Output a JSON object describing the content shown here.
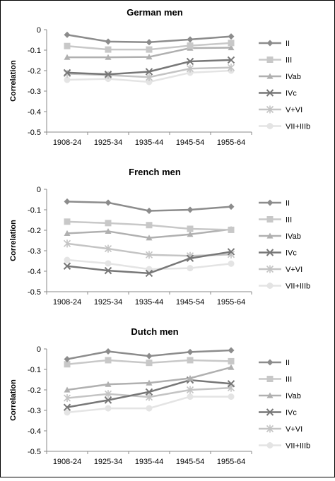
{
  "figure_outline": "#000000",
  "chart_data": [
    {
      "type": "line",
      "title": "German men",
      "ylabel": "Correlation",
      "xlabel": "",
      "ylim": [
        -0.5,
        0
      ],
      "yticks": [
        "0",
        "-0.1",
        "-0.2",
        "-0.3",
        "-0.4",
        "-0.5"
      ],
      "categories": [
        "1908-24",
        "1925-34",
        "1935-44",
        "1945-54",
        "1955-64"
      ],
      "grid": false,
      "legend": "right",
      "series": [
        {
          "name": "II",
          "marker": "diamond",
          "color": "#8c8c8c",
          "values": [
            -0.025,
            -0.058,
            -0.061,
            -0.048,
            -0.033
          ]
        },
        {
          "name": "III",
          "marker": "square",
          "color": "#c8c8c8",
          "values": [
            -0.08,
            -0.097,
            -0.097,
            -0.078,
            -0.065
          ]
        },
        {
          "name": "IVab",
          "marker": "triangle",
          "color": "#b0b0b0",
          "values": [
            -0.135,
            -0.135,
            -0.133,
            -0.09,
            -0.088
          ]
        },
        {
          "name": "IVc",
          "marker": "x",
          "color": "#777777",
          "values": [
            -0.21,
            -0.218,
            -0.205,
            -0.155,
            -0.148
          ]
        },
        {
          "name": "V+VI",
          "marker": "star",
          "color": "#c4c4c4",
          "values": [
            -0.215,
            -0.222,
            -0.232,
            -0.19,
            -0.185
          ]
        },
        {
          "name": "VII+IIIb",
          "marker": "circle",
          "color": "#e4e4e4",
          "values": [
            -0.245,
            -0.24,
            -0.255,
            -0.21,
            -0.2
          ]
        }
      ]
    },
    {
      "type": "line",
      "title": "French men",
      "ylabel": "Correlation",
      "xlabel": "",
      "ylim": [
        -0.5,
        0
      ],
      "yticks": [
        "0",
        "-0.1",
        "-0.2",
        "-0.3",
        "-0.4",
        "-0.5"
      ],
      "categories": [
        "1908-24",
        "1925-34",
        "1935-44",
        "1945-54",
        "1955-64"
      ],
      "grid": false,
      "legend": "right",
      "series": [
        {
          "name": "II",
          "marker": "diamond",
          "color": "#8c8c8c",
          "values": [
            -0.06,
            -0.065,
            -0.105,
            -0.1,
            -0.085
          ]
        },
        {
          "name": "III",
          "marker": "square",
          "color": "#c8c8c8",
          "values": [
            -0.158,
            -0.165,
            -0.175,
            -0.193,
            -0.198
          ]
        },
        {
          "name": "IVab",
          "marker": "triangle",
          "color": "#b0b0b0",
          "values": [
            -0.215,
            -0.205,
            -0.237,
            -0.22,
            -0.195
          ]
        },
        {
          "name": "IVc",
          "marker": "x",
          "color": "#777777",
          "values": [
            -0.375,
            -0.397,
            -0.41,
            -0.337,
            -0.305
          ]
        },
        {
          "name": "V+VI",
          "marker": "star",
          "color": "#c4c4c4",
          "values": [
            -0.265,
            -0.29,
            -0.32,
            -0.325,
            -0.318
          ]
        },
        {
          "name": "VII+IIIb",
          "marker": "circle",
          "color": "#e4e4e4",
          "values": [
            -0.345,
            -0.362,
            -0.39,
            -0.385,
            -0.363
          ]
        }
      ]
    },
    {
      "type": "line",
      "title": "Dutch men",
      "ylabel": "Correlation",
      "xlabel": "",
      "ylim": [
        -0.5,
        0
      ],
      "yticks": [
        "0",
        "-0.1",
        "-0.2",
        "-0.3",
        "-0.4",
        "-0.5"
      ],
      "categories": [
        "1908-24",
        "1925-34",
        "1935-44",
        "1945-54",
        "1955-64"
      ],
      "grid": false,
      "legend": "right",
      "series": [
        {
          "name": "II",
          "marker": "diamond",
          "color": "#8c8c8c",
          "values": [
            -0.05,
            -0.012,
            -0.035,
            -0.015,
            -0.007
          ]
        },
        {
          "name": "III",
          "marker": "square",
          "color": "#c8c8c8",
          "values": [
            -0.075,
            -0.055,
            -0.068,
            -0.055,
            -0.06
          ]
        },
        {
          "name": "IVab",
          "marker": "triangle",
          "color": "#b0b0b0",
          "values": [
            -0.2,
            -0.173,
            -0.166,
            -0.143,
            -0.09
          ]
        },
        {
          "name": "IVc",
          "marker": "x",
          "color": "#777777",
          "values": [
            -0.285,
            -0.25,
            -0.21,
            -0.152,
            -0.17
          ]
        },
        {
          "name": "V+VI",
          "marker": "star",
          "color": "#c4c4c4",
          "values": [
            -0.24,
            -0.22,
            -0.235,
            -0.2,
            -0.19
          ]
        },
        {
          "name": "VII+IIIb",
          "marker": "circle",
          "color": "#e4e4e4",
          "values": [
            -0.31,
            -0.29,
            -0.29,
            -0.233,
            -0.233
          ]
        }
      ]
    }
  ]
}
